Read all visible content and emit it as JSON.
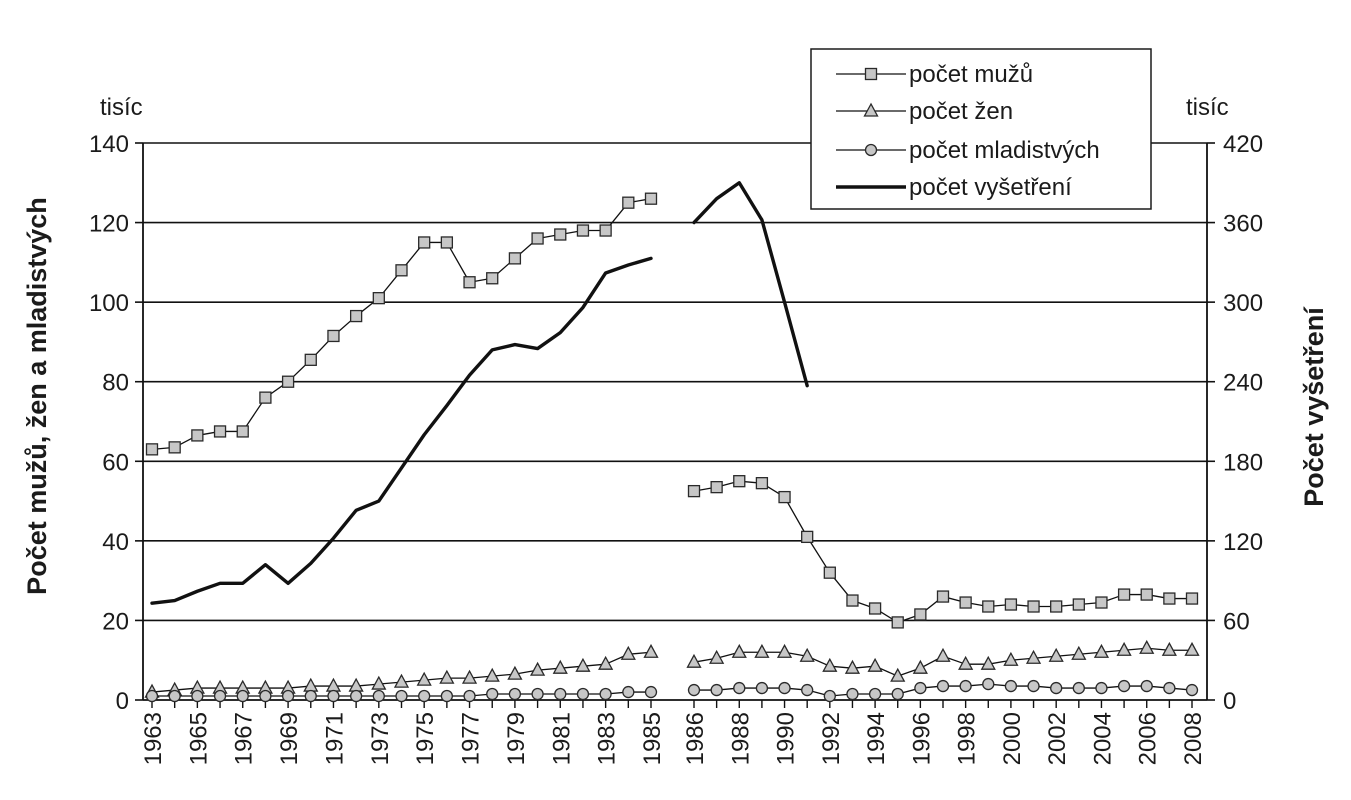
{
  "chart_data": {
    "type": "line",
    "left_unit": "tisíc",
    "right_unit": "tisíc",
    "ylabel_left": "Počet mužů, žen a mladistvých",
    "ylabel_right": "Počet vyšetření",
    "ylim_left": [
      0,
      140
    ],
    "ylim_right": [
      0,
      420
    ],
    "left_ticks": [
      "0",
      "20",
      "40",
      "60",
      "80",
      "100",
      "120",
      "140"
    ],
    "right_ticks": [
      "0",
      "60",
      "120",
      "180",
      "240",
      "300",
      "360",
      "420"
    ],
    "grid": "horizontal",
    "legend_position": "top-right",
    "x_labels": [
      "1963",
      "1965",
      "1967",
      "1969",
      "1971",
      "1973",
      "1975",
      "1977",
      "1979",
      "1981",
      "1983",
      "1985",
      "1986",
      "1988",
      "1990",
      "1992",
      "1994",
      "1996",
      "1998",
      "2000",
      "2002",
      "2004",
      "2006",
      "2008"
    ],
    "period_1": {
      "years": [
        1963,
        1964,
        1965,
        1966,
        1967,
        1968,
        1969,
        1970,
        1971,
        1972,
        1973,
        1974,
        1975,
        1976,
        1977,
        1978,
        1979,
        1980,
        1981,
        1982,
        1983,
        1984,
        1985
      ]
    },
    "period_2": {
      "years": [
        1986,
        1987,
        1988,
        1989,
        1990,
        1991,
        1992,
        1993,
        1994,
        1995,
        1996,
        1997,
        1998,
        1999,
        2000,
        2001,
        2002,
        2003,
        2004,
        2005,
        2006,
        2007,
        2008
      ]
    },
    "series": [
      {
        "name": "počet mužů",
        "axis": "left",
        "marker": "square",
        "period_1": [
          63,
          63.5,
          66.5,
          67.5,
          67.5,
          76,
          80,
          85.5,
          91.5,
          96.5,
          101,
          108,
          115,
          115,
          105,
          106,
          111,
          116,
          117,
          118,
          118,
          125,
          126
        ],
        "period_2": [
          52.5,
          53.5,
          55,
          54.5,
          51,
          41,
          32,
          25,
          23,
          19.5,
          21.5,
          26,
          24.5,
          23.5,
          24,
          23.5,
          23.5,
          24,
          24.5,
          26.5,
          26.5,
          25.5,
          25.5
        ]
      },
      {
        "name": "počet žen",
        "axis": "left",
        "marker": "triangle",
        "period_1": [
          2,
          2.5,
          3,
          3,
          3,
          3,
          3,
          3.5,
          3.5,
          3.5,
          4,
          4.5,
          5,
          5.5,
          5.5,
          6,
          6.5,
          7.5,
          8,
          8.5,
          9,
          11.5,
          12
        ],
        "period_2": [
          9.5,
          10.5,
          12,
          12,
          12,
          11,
          8.5,
          8,
          8.5,
          6,
          8,
          11,
          9,
          9,
          10,
          10.5,
          11,
          11.5,
          12,
          12.5,
          13,
          12.5,
          12.5
        ]
      },
      {
        "name": "počet mladistvých",
        "axis": "left",
        "marker": "circle",
        "period_1": [
          1,
          1,
          1,
          1,
          1,
          1,
          1,
          1,
          1,
          1,
          1,
          1,
          1,
          1,
          1,
          1.5,
          1.5,
          1.5,
          1.5,
          1.5,
          1.5,
          2,
          2
        ],
        "period_2": [
          2.5,
          2.5,
          3,
          3,
          3,
          2.5,
          1,
          1.5,
          1.5,
          1.5,
          3,
          3.5,
          3.5,
          4,
          3.5,
          3.5,
          3,
          3,
          3,
          3.5,
          3.5,
          3,
          2.5
        ]
      },
      {
        "name": "počet vyšetření",
        "axis": "right",
        "marker": "none",
        "period_1": [
          73,
          75,
          82,
          88,
          88,
          102,
          88,
          103,
          122,
          143,
          150,
          175,
          200,
          222,
          245,
          264,
          268,
          265,
          277,
          296,
          322,
          328,
          333
        ],
        "period_2": [
          360,
          378,
          390,
          362,
          300,
          237
        ]
      }
    ]
  }
}
